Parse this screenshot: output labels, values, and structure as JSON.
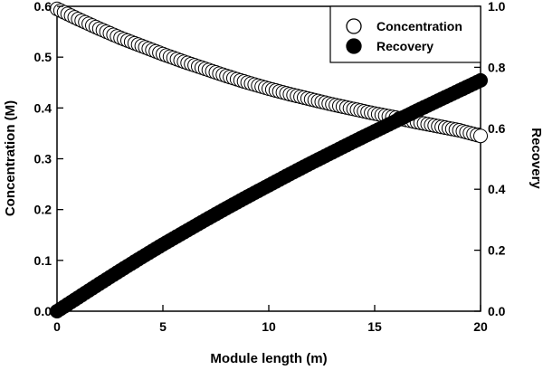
{
  "chart_data": {
    "type": "scatter",
    "title": "",
    "xlabel": "Module length (m)",
    "ylabel_left": "Concentration (M)",
    "ylabel_right": "Recovery",
    "xlim": [
      0,
      20
    ],
    "ylim_left": [
      0,
      0.6
    ],
    "ylim_right": [
      0,
      1.0
    ],
    "x_ticks": [
      "0",
      "5",
      "10",
      "15",
      "20"
    ],
    "y_left_ticks": [
      "0.0",
      "0.1",
      "0.2",
      "0.3",
      "0.4",
      "0.5",
      "0.6"
    ],
    "y_right_ticks": [
      "0.0",
      "0.2",
      "0.4",
      "0.6",
      "0.8",
      "1.0"
    ],
    "grid": false,
    "legend_position": "top-right",
    "series": [
      {
        "name": "Concentration",
        "axis": "left",
        "marker": "open-circle",
        "color": "#000000",
        "fill": "#ffffff",
        "x": [
          0,
          1,
          2,
          3,
          4,
          5,
          6,
          7,
          8,
          9,
          10,
          11,
          12,
          13,
          14,
          15,
          16,
          17,
          18,
          19,
          20
        ],
        "y": [
          0.595,
          0.575,
          0.556,
          0.538,
          0.522,
          0.506,
          0.491,
          0.477,
          0.463,
          0.45,
          0.438,
          0.427,
          0.417,
          0.407,
          0.398,
          0.389,
          0.381,
          0.372,
          0.364,
          0.356,
          0.345
        ]
      },
      {
        "name": "Recovery",
        "axis": "right",
        "marker": "filled-circle",
        "color": "#000000",
        "fill": "#000000",
        "x": [
          0,
          1,
          2,
          3,
          4,
          5,
          6,
          7,
          8,
          9,
          10,
          11,
          12,
          13,
          14,
          15,
          16,
          17,
          18,
          19,
          20
        ],
        "y": [
          0.0,
          0.045,
          0.09,
          0.134,
          0.177,
          0.219,
          0.259,
          0.299,
          0.338,
          0.376,
          0.413,
          0.45,
          0.486,
          0.521,
          0.556,
          0.59,
          0.624,
          0.658,
          0.691,
          0.724,
          0.757
        ]
      }
    ]
  }
}
